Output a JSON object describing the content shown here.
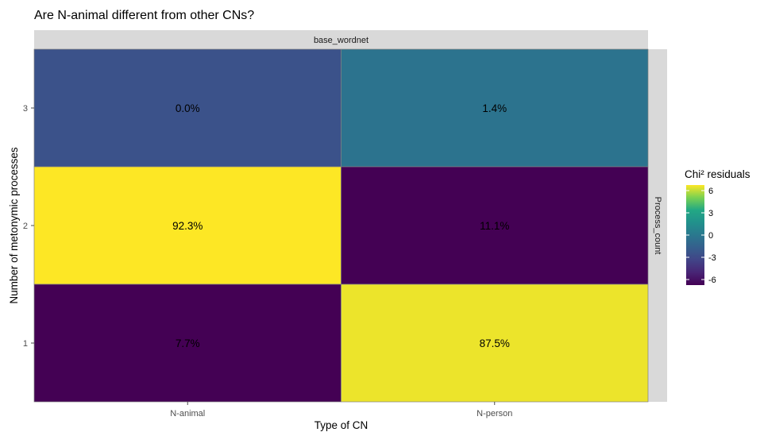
{
  "chart_data": {
    "type": "heatmap",
    "title": "Are N-animal different from other CNs?",
    "facet_top": "base_wordnet",
    "facet_right": "Process_count",
    "xlabel": "Type of CN",
    "ylabel": "Number of metonymic processes",
    "x_categories": [
      "N-animal",
      "N-person"
    ],
    "y_categories": [
      "1",
      "2",
      "3"
    ],
    "cells": [
      {
        "x": "N-animal",
        "y": "3",
        "label": "0.0%",
        "residual": -2.2
      },
      {
        "x": "N-person",
        "y": "3",
        "label": "1.4%",
        "residual": -0.3
      },
      {
        "x": "N-animal",
        "y": "2",
        "label": "92.3%",
        "residual": 6.0
      },
      {
        "x": "N-person",
        "y": "2",
        "label": "11.1%",
        "residual": -6.0
      },
      {
        "x": "N-animal",
        "y": "1",
        "label": "7.7%",
        "residual": -6.0
      },
      {
        "x": "N-person",
        "y": "1",
        "label": "87.5%",
        "residual": 5.8
      }
    ],
    "legend": {
      "title": "Chi² residuals",
      "ticks": [
        "6",
        "3",
        "0",
        "-3",
        "-6"
      ],
      "range": [
        -6,
        6
      ],
      "palette": "viridis"
    }
  }
}
